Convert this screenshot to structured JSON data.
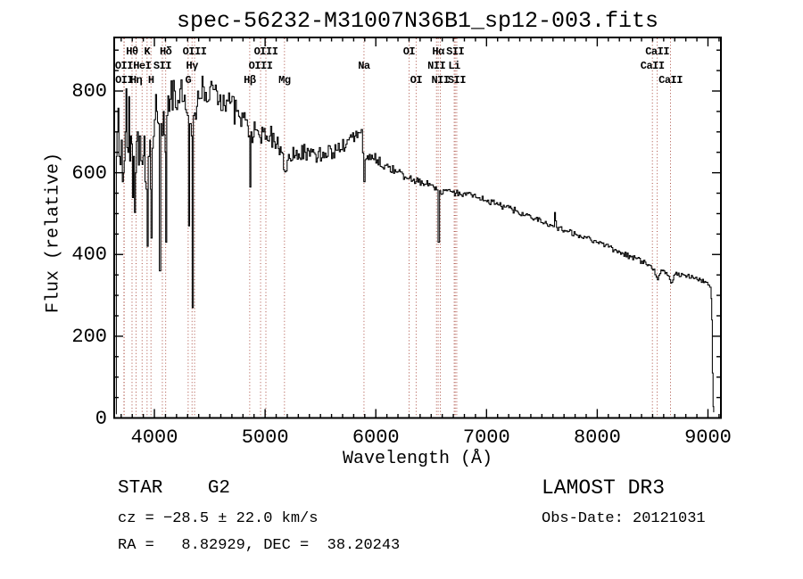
{
  "title": "spec-56232-M31007N36B1_sp12-003.fits",
  "annotations": {
    "class_label": "STAR    G2",
    "survey": "LAMOST DR3",
    "cz_line": "cz = −28.5 ± 22.0 km/s",
    "obs_line": "Obs-Date: 20121031",
    "radec_line": "RA =   8.82929, DEC =  38.20243"
  },
  "colors": {
    "spectrum": "#000000",
    "spectral_marker": "#a23b2e",
    "axis": "#000000",
    "text": "#000000",
    "background": "#ffffff"
  },
  "chart_data": {
    "type": "line",
    "title": "spec-56232-M31007N36B1_sp12-003.fits",
    "xlabel": "Wavelength (Å)",
    "ylabel": "Flux (relative)",
    "xlim": [
      3637,
      9117
    ],
    "ylim": [
      0,
      931
    ],
    "x_ticks": [
      4000,
      5000,
      6000,
      7000,
      8000,
      9000
    ],
    "y_ticks": [
      0,
      200,
      400,
      600,
      800
    ],
    "x_minor_step": 100,
    "y_minor_step": 50,
    "grid": false,
    "legend": "none",
    "spectral_lines": [
      {
        "label": "Hθ",
        "wl": 3798,
        "row": 1
      },
      {
        "label": "K",
        "wl": 3934,
        "row": 1
      },
      {
        "label": "Hδ",
        "wl": 4102,
        "row": 1
      },
      {
        "label": "OIII",
        "wl": 4363,
        "row": 1
      },
      {
        "label": "OIII",
        "wl": 5007,
        "row": 1
      },
      {
        "label": "OI",
        "wl": 6300,
        "row": 1
      },
      {
        "label": "Hα",
        "wl": 6563,
        "row": 1
      },
      {
        "label": "SII",
        "wl": 6717,
        "row": 1
      },
      {
        "label": "CaII",
        "wl": 8542,
        "row": 1
      },
      {
        "label": "OII",
        "wl": 3725,
        "row": 2
      },
      {
        "label": "HeI",
        "wl": 3889,
        "row": 2
      },
      {
        "label": "SII",
        "wl": 4072,
        "row": 2
      },
      {
        "label": "Hγ",
        "wl": 4340,
        "row": 2
      },
      {
        "label": "OIII",
        "wl": 4959,
        "row": 2
      },
      {
        "label": "Na",
        "wl": 5893,
        "row": 2
      },
      {
        "label": "NII",
        "wl": 6548,
        "row": 2
      },
      {
        "label": "Li",
        "wl": 6708,
        "row": 2
      },
      {
        "label": "CaII",
        "wl": 8498,
        "row": 2
      },
      {
        "label": "OII",
        "wl": 3727,
        "row": 3
      },
      {
        "label": "Hη",
        "wl": 3835,
        "row": 3
      },
      {
        "label": "H",
        "wl": 3969,
        "row": 3
      },
      {
        "label": "G",
        "wl": 4305,
        "row": 3
      },
      {
        "label": "Hβ",
        "wl": 4861,
        "row": 3
      },
      {
        "label": "Mg",
        "wl": 5175,
        "row": 3
      },
      {
        "label": "OI",
        "wl": 6364,
        "row": 3
      },
      {
        "label": "NII",
        "wl": 6583,
        "row": 3
      },
      {
        "label": "SII",
        "wl": 6731,
        "row": 3
      },
      {
        "label": "CaII",
        "wl": 8662,
        "row": 3
      }
    ],
    "spectrum": {
      "seed": 77,
      "sample_step_angstrom": 10,
      "anchors": [
        [
          3654,
          10,
          0
        ],
        [
          3656,
          640,
          0
        ],
        [
          3662,
          700,
          150
        ],
        [
          3680,
          640,
          160
        ],
        [
          3700,
          680,
          150
        ],
        [
          3720,
          600,
          160
        ],
        [
          3735,
          700,
          140
        ],
        [
          3760,
          650,
          150
        ],
        [
          3785,
          690,
          130
        ],
        [
          3810,
          640,
          130
        ],
        [
          3830,
          600,
          110
        ],
        [
          3845,
          700,
          100
        ],
        [
          3865,
          690,
          95
        ],
        [
          3889,
          620,
          80
        ],
        [
          3905,
          690,
          70
        ],
        [
          3925,
          560,
          50
        ],
        [
          3934,
          420,
          15
        ],
        [
          3944,
          640,
          50
        ],
        [
          3958,
          680,
          45
        ],
        [
          3964,
          560,
          30
        ],
        [
          3969,
          440,
          15
        ],
        [
          3980,
          660,
          50
        ],
        [
          4000,
          730,
          55
        ],
        [
          4020,
          750,
          55
        ],
        [
          4035,
          720,
          55
        ],
        [
          4045,
          360,
          10
        ],
        [
          4058,
          720,
          50
        ],
        [
          4080,
          750,
          50
        ],
        [
          4096,
          650,
          30
        ],
        [
          4102,
          430,
          10
        ],
        [
          4112,
          740,
          50
        ],
        [
          4140,
          780,
          50
        ],
        [
          4180,
          800,
          50
        ],
        [
          4230,
          805,
          50
        ],
        [
          4270,
          790,
          45
        ],
        [
          4298,
          740,
          30
        ],
        [
          4308,
          470,
          10
        ],
        [
          4318,
          720,
          40
        ],
        [
          4333,
          690,
          20
        ],
        [
          4341,
          270,
          8
        ],
        [
          4352,
          740,
          45
        ],
        [
          4390,
          800,
          50
        ],
        [
          4440,
          810,
          50
        ],
        [
          4500,
          810,
          45
        ],
        [
          4560,
          800,
          45
        ],
        [
          4620,
          790,
          40
        ],
        [
          4680,
          770,
          40
        ],
        [
          4740,
          750,
          38
        ],
        [
          4800,
          735,
          32
        ],
        [
          4840,
          715,
          25
        ],
        [
          4857,
          690,
          15
        ],
        [
          4862,
          565,
          5
        ],
        [
          4872,
          700,
          28
        ],
        [
          4920,
          705,
          30
        ],
        [
          4980,
          700,
          30
        ],
        [
          5040,
          690,
          28
        ],
        [
          5100,
          670,
          26
        ],
        [
          5145,
          650,
          20
        ],
        [
          5176,
          602,
          10
        ],
        [
          5210,
          645,
          22
        ],
        [
          5280,
          655,
          24
        ],
        [
          5360,
          650,
          22
        ],
        [
          5450,
          645,
          20
        ],
        [
          5540,
          648,
          20
        ],
        [
          5640,
          655,
          18
        ],
        [
          5730,
          670,
          16
        ],
        [
          5810,
          690,
          14
        ],
        [
          5868,
          706,
          10
        ],
        [
          5891,
          578,
          5
        ],
        [
          5903,
          632,
          10
        ],
        [
          5940,
          645,
          14
        ],
        [
          6010,
          632,
          14
        ],
        [
          6090,
          618,
          13
        ],
        [
          6180,
          602,
          13
        ],
        [
          6270,
          588,
          12
        ],
        [
          6360,
          578,
          11
        ],
        [
          6450,
          572,
          10
        ],
        [
          6520,
          565,
          9
        ],
        [
          6548,
          558,
          7
        ],
        [
          6562,
          430,
          4
        ],
        [
          6576,
          556,
          9
        ],
        [
          6640,
          556,
          10
        ],
        [
          6720,
          550,
          9
        ],
        [
          6810,
          545,
          9
        ],
        [
          6900,
          540,
          9
        ],
        [
          6990,
          532,
          9
        ],
        [
          7080,
          524,
          8
        ],
        [
          7170,
          516,
          8
        ],
        [
          7260,
          507,
          8
        ],
        [
          7350,
          497,
          8
        ],
        [
          7440,
          487,
          8
        ],
        [
          7540,
          475,
          7
        ],
        [
          7600,
          468,
          6
        ],
        [
          7614,
          503,
          3
        ],
        [
          7632,
          466,
          7
        ],
        [
          7720,
          458,
          7
        ],
        [
          7810,
          448,
          7
        ],
        [
          7900,
          440,
          7
        ],
        [
          8000,
          430,
          7
        ],
        [
          8100,
          418,
          7
        ],
        [
          8200,
          406,
          7
        ],
        [
          8300,
          394,
          7
        ],
        [
          8400,
          384,
          7
        ],
        [
          8470,
          374,
          6
        ],
        [
          8510,
          364,
          6
        ],
        [
          8543,
          338,
          4
        ],
        [
          8575,
          362,
          5
        ],
        [
          8620,
          356,
          5
        ],
        [
          8663,
          330,
          4
        ],
        [
          8700,
          352,
          6
        ],
        [
          8780,
          350,
          6
        ],
        [
          8860,
          344,
          6
        ],
        [
          8930,
          338,
          6
        ],
        [
          8990,
          332,
          6
        ],
        [
          9015,
          320,
          5
        ],
        [
          9028,
          292,
          4
        ],
        [
          9034,
          240,
          0
        ],
        [
          9040,
          110,
          0
        ],
        [
          9046,
          28,
          4
        ],
        [
          9052,
          14,
          0
        ]
      ]
    }
  }
}
